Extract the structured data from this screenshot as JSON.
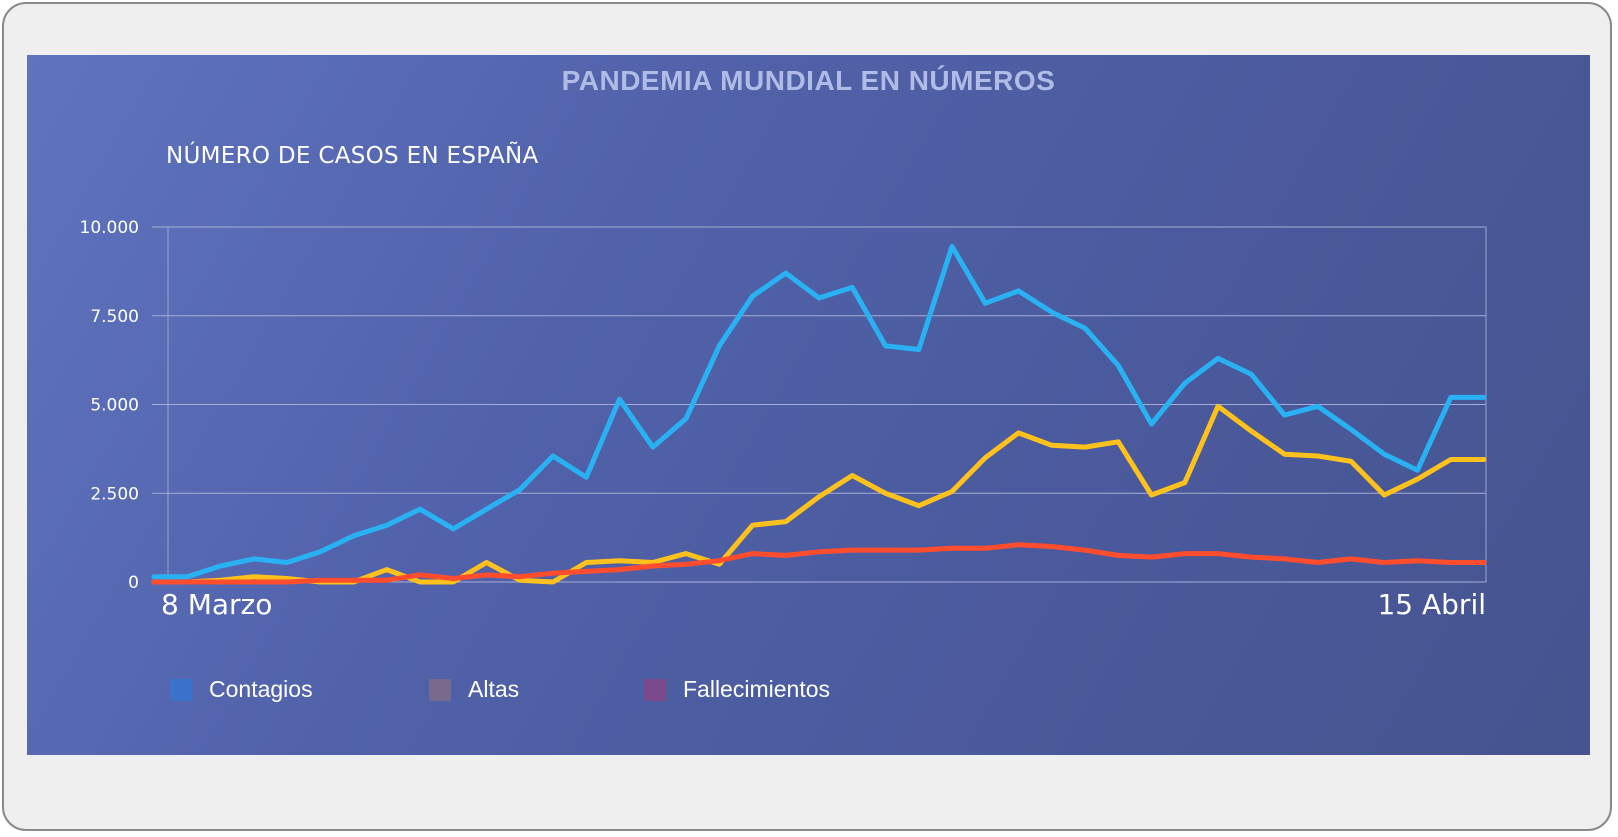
{
  "header": {
    "banner_title": "PANDEMIA MUNDIAL EN NÚMEROS"
  },
  "chart_data": {
    "type": "line",
    "title": "NÚMERO DE CASOS EN ESPAÑA",
    "xlabel": "",
    "ylabel": "",
    "x_start_label": "8 Marzo",
    "x_end_label": "15 Abril",
    "ylim": [
      0,
      10000
    ],
    "yticks": [
      0,
      2500,
      5000,
      7500,
      10000
    ],
    "ytick_labels": [
      "0",
      "2.500",
      "5.000",
      "7.500",
      "10.000"
    ],
    "grid": true,
    "legend_position": "bottom-left",
    "series": [
      {
        "name": "Contagios",
        "color": "#29b2f3",
        "legend_color": "#3a73c9",
        "values": [
          150,
          150,
          450,
          650,
          550,
          850,
          1300,
          1600,
          2050,
          1500,
          2050,
          2600,
          3550,
          2950,
          5150,
          3800,
          4600,
          6650,
          8050,
          8700,
          8000,
          8300,
          6650,
          6550,
          9450,
          7850,
          8200,
          7600,
          7150,
          6100,
          4450,
          5600,
          6300,
          5850,
          4700,
          4950,
          4300,
          3600,
          3150,
          5200,
          5200
        ]
      },
      {
        "name": "Altas",
        "color": "#ffc21c",
        "legend_color": "#79698c",
        "values": [
          0,
          0,
          50,
          150,
          100,
          0,
          0,
          350,
          0,
          0,
          550,
          50,
          0,
          550,
          600,
          550,
          800,
          500,
          1600,
          1700,
          2400,
          3000,
          2500,
          2150,
          2550,
          3500,
          4200,
          3850,
          3800,
          3950,
          2450,
          2800,
          4950,
          4250,
          3600,
          3550,
          3400,
          2450,
          2900,
          3450,
          3450
        ]
      },
      {
        "name": "Fallecimientos",
        "color": "#ff4d2e",
        "legend_color": "#7c4a8c",
        "values": [
          0,
          0,
          0,
          0,
          0,
          50,
          50,
          50,
          200,
          100,
          200,
          150,
          250,
          300,
          350,
          450,
          500,
          600,
          800,
          750,
          850,
          900,
          900,
          900,
          950,
          950,
          1050,
          1000,
          900,
          750,
          700,
          800,
          800,
          700,
          650,
          550,
          650,
          550,
          600,
          550,
          550
        ]
      }
    ]
  }
}
